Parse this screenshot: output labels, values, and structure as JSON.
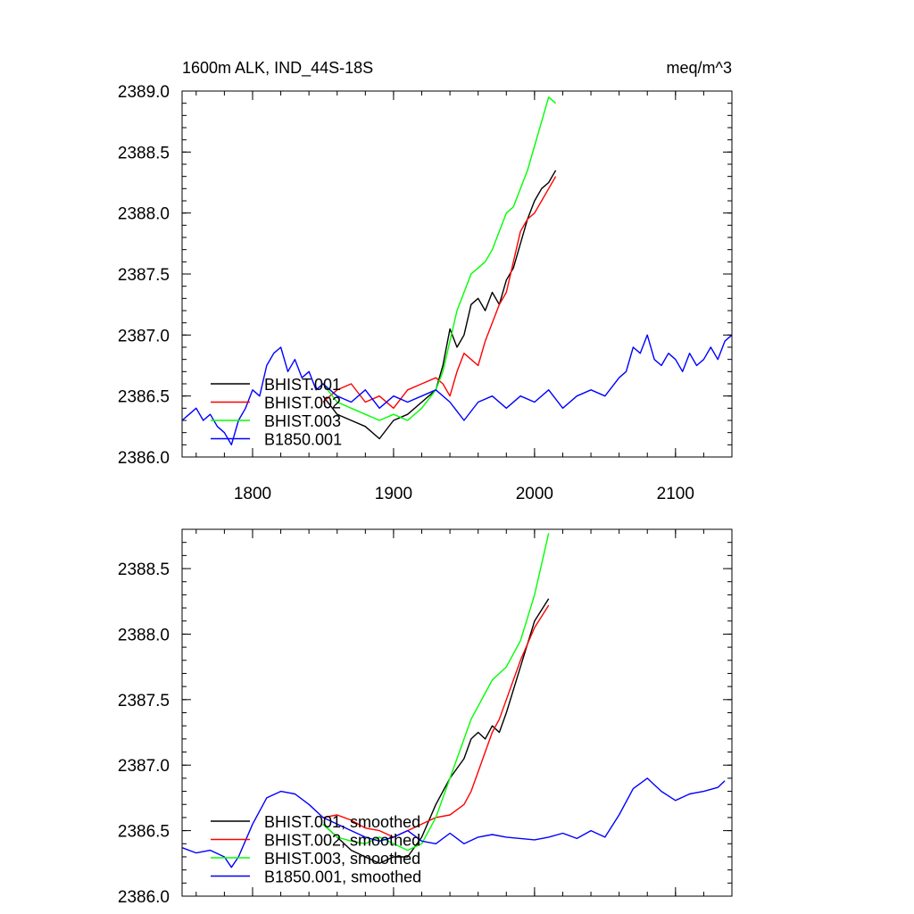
{
  "colors": {
    "BHIST.001": "#000000",
    "BHIST.002": "#ff0000",
    "BHIST.003": "#00ff00",
    "B1850.001": "#0000ff"
  },
  "chart_data": [
    {
      "type": "line",
      "title": "1600m ALK, IND_44S-18S",
      "units": "meq/m^3",
      "xlim": [
        1750,
        2140
      ],
      "ylim": [
        2386.0,
        2389.0
      ],
      "xticks": [
        1800,
        1900,
        2000,
        2100
      ],
      "xtick_labels": [
        "1800",
        "1900",
        "2000",
        "2100"
      ],
      "yticks": [
        2386.0,
        2386.5,
        2387.0,
        2387.5,
        2388.0,
        2388.5,
        2389.0
      ],
      "ytick_labels": [
        "2386.0",
        "2386.5",
        "2387.0",
        "2387.5",
        "2388.0",
        "2388.5",
        "2389.0"
      ],
      "legend_placement": "lower-left",
      "series": [
        {
          "name": "BHIST.001",
          "x": [
            1850,
            1860,
            1870,
            1880,
            1890,
            1900,
            1910,
            1920,
            1930,
            1935,
            1940,
            1945,
            1950,
            1955,
            1960,
            1965,
            1970,
            1975,
            1980,
            1985,
            1990,
            1995,
            2000,
            2005,
            2010,
            2015
          ],
          "y": [
            2386.5,
            2386.35,
            2386.3,
            2386.25,
            2386.15,
            2386.3,
            2386.35,
            2386.45,
            2386.55,
            2386.75,
            2387.05,
            2386.9,
            2387.0,
            2387.25,
            2387.3,
            2387.2,
            2387.35,
            2387.25,
            2387.45,
            2387.55,
            2387.75,
            2387.95,
            2388.1,
            2388.2,
            2388.25,
            2388.35
          ]
        },
        {
          "name": "BHIST.002",
          "x": [
            1850,
            1860,
            1870,
            1880,
            1890,
            1900,
            1910,
            1920,
            1930,
            1935,
            1940,
            1945,
            1950,
            1955,
            1960,
            1965,
            1970,
            1975,
            1980,
            1985,
            1990,
            1995,
            2000,
            2005,
            2010,
            2015
          ],
          "y": [
            2386.45,
            2386.55,
            2386.6,
            2386.45,
            2386.5,
            2386.4,
            2386.55,
            2386.6,
            2386.65,
            2386.6,
            2386.5,
            2386.7,
            2386.85,
            2386.8,
            2386.75,
            2386.95,
            2387.1,
            2387.25,
            2387.35,
            2387.6,
            2387.85,
            2387.95,
            2388.0,
            2388.1,
            2388.2,
            2388.3
          ]
        },
        {
          "name": "BHIST.003",
          "x": [
            1850,
            1860,
            1870,
            1880,
            1890,
            1900,
            1910,
            1920,
            1930,
            1935,
            1940,
            1945,
            1950,
            1955,
            1960,
            1965,
            1970,
            1975,
            1980,
            1985,
            1990,
            1995,
            2000,
            2005,
            2010,
            2015
          ],
          "y": [
            2386.6,
            2386.45,
            2386.4,
            2386.35,
            2386.3,
            2386.35,
            2386.3,
            2386.4,
            2386.55,
            2386.7,
            2386.95,
            2387.2,
            2387.35,
            2387.5,
            2387.55,
            2387.6,
            2387.7,
            2387.85,
            2388.0,
            2388.05,
            2388.2,
            2388.35,
            2388.55,
            2388.75,
            2388.95,
            2388.9
          ]
        },
        {
          "name": "B1850.001",
          "x": [
            1750,
            1755,
            1760,
            1765,
            1770,
            1775,
            1780,
            1785,
            1790,
            1795,
            1800,
            1805,
            1810,
            1815,
            1820,
            1825,
            1830,
            1835,
            1840,
            1845,
            1850,
            1860,
            1870,
            1880,
            1890,
            1900,
            1910,
            1920,
            1930,
            1940,
            1950,
            1960,
            1970,
            1980,
            1990,
            2000,
            2010,
            2020,
            2030,
            2040,
            2050,
            2060,
            2065,
            2070,
            2075,
            2080,
            2085,
            2090,
            2095,
            2100,
            2105,
            2110,
            2115,
            2120,
            2125,
            2130,
            2135,
            2140
          ],
          "y": [
            2386.3,
            2386.35,
            2386.4,
            2386.3,
            2386.35,
            2386.25,
            2386.2,
            2386.1,
            2386.3,
            2386.4,
            2386.55,
            2386.5,
            2386.75,
            2386.85,
            2386.9,
            2386.7,
            2386.8,
            2386.65,
            2386.7,
            2386.55,
            2386.6,
            2386.5,
            2386.45,
            2386.55,
            2386.4,
            2386.5,
            2386.45,
            2386.5,
            2386.55,
            2386.45,
            2386.3,
            2386.45,
            2386.5,
            2386.4,
            2386.5,
            2386.45,
            2386.55,
            2386.4,
            2386.5,
            2386.55,
            2386.5,
            2386.65,
            2386.7,
            2386.9,
            2386.85,
            2387.0,
            2386.8,
            2386.75,
            2386.85,
            2386.8,
            2386.7,
            2386.85,
            2386.75,
            2386.8,
            2386.9,
            2386.8,
            2386.95,
            2387.0
          ]
        }
      ]
    },
    {
      "type": "line",
      "xlim": [
        1750,
        2140
      ],
      "ylim": [
        2386.0,
        2388.8
      ],
      "xticks": [
        1800,
        1900,
        2000,
        2100
      ],
      "yticks": [
        2386.0,
        2386.5,
        2387.0,
        2387.5,
        2388.0,
        2388.5
      ],
      "ytick_labels": [
        "2386.0",
        "2386.5",
        "2387.0",
        "2387.5",
        "2388.0",
        "2388.5"
      ],
      "legend_placement": "lower-left",
      "series": [
        {
          "name": "BHIST.001, smoothed",
          "x": [
            1850,
            1860,
            1870,
            1880,
            1890,
            1900,
            1910,
            1920,
            1930,
            1940,
            1950,
            1955,
            1960,
            1965,
            1970,
            1975,
            1980,
            1990,
            2000,
            2010
          ],
          "y": [
            2386.55,
            2386.45,
            2386.35,
            2386.3,
            2386.25,
            2386.3,
            2386.3,
            2386.45,
            2386.7,
            2386.9,
            2387.05,
            2387.2,
            2387.25,
            2387.2,
            2387.3,
            2387.25,
            2387.4,
            2387.75,
            2388.1,
            2388.27
          ]
        },
        {
          "name": "BHIST.002, smoothed",
          "x": [
            1850,
            1860,
            1870,
            1880,
            1890,
            1900,
            1910,
            1920,
            1930,
            1940,
            1950,
            1955,
            1960,
            1965,
            1970,
            1975,
            1980,
            1990,
            2000,
            2010
          ],
          "y": [
            2386.6,
            2386.62,
            2386.58,
            2386.52,
            2386.5,
            2386.45,
            2386.5,
            2386.55,
            2386.6,
            2386.62,
            2386.7,
            2386.8,
            2386.95,
            2387.1,
            2387.25,
            2387.35,
            2387.5,
            2387.8,
            2388.05,
            2388.22
          ]
        },
        {
          "name": "BHIST.003, smoothed",
          "x": [
            1850,
            1860,
            1870,
            1880,
            1890,
            1900,
            1910,
            1920,
            1930,
            1940,
            1950,
            1955,
            1960,
            1965,
            1970,
            1975,
            1980,
            1990,
            2000,
            2010
          ],
          "y": [
            2386.55,
            2386.45,
            2386.42,
            2386.4,
            2386.45,
            2386.4,
            2386.35,
            2386.4,
            2386.6,
            2386.9,
            2387.2,
            2387.35,
            2387.45,
            2387.55,
            2387.65,
            2387.7,
            2387.75,
            2387.95,
            2388.3,
            2388.77
          ]
        },
        {
          "name": "B1850.001, smoothed",
          "x": [
            1750,
            1760,
            1770,
            1780,
            1785,
            1790,
            1800,
            1810,
            1820,
            1830,
            1840,
            1850,
            1860,
            1870,
            1880,
            1890,
            1900,
            1910,
            1920,
            1930,
            1940,
            1950,
            1960,
            1970,
            1980,
            1990,
            2000,
            2010,
            2020,
            2030,
            2040,
            2050,
            2060,
            2070,
            2080,
            2090,
            2100,
            2110,
            2120,
            2130,
            2135
          ],
          "y": [
            2386.37,
            2386.33,
            2386.35,
            2386.3,
            2386.22,
            2386.3,
            2386.55,
            2386.75,
            2386.8,
            2386.78,
            2386.7,
            2386.6,
            2386.55,
            2386.5,
            2386.45,
            2386.42,
            2386.45,
            2386.5,
            2386.42,
            2386.4,
            2386.48,
            2386.4,
            2386.45,
            2386.47,
            2386.45,
            2386.44,
            2386.43,
            2386.45,
            2386.48,
            2386.44,
            2386.5,
            2386.45,
            2386.62,
            2386.82,
            2386.9,
            2386.8,
            2386.73,
            2386.78,
            2386.8,
            2386.83,
            2386.88
          ]
        }
      ]
    }
  ]
}
